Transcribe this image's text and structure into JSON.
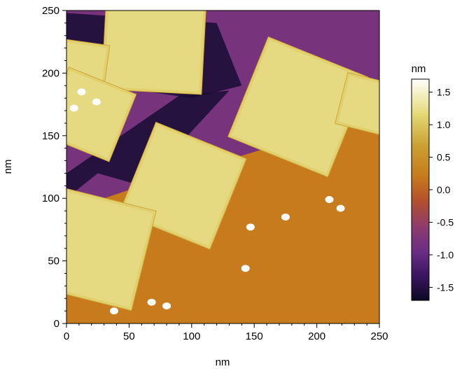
{
  "chart_data": {
    "type": "heatmap",
    "title": "",
    "xlabel": "nm",
    "ylabel": "nm",
    "xlim": [
      0,
      250
    ],
    "ylim": [
      0,
      250
    ],
    "x_ticks": [
      0,
      50,
      100,
      150,
      200,
      250
    ],
    "y_ticks": [
      0,
      50,
      100,
      150,
      200,
      250
    ],
    "colorbar": {
      "label": "nm",
      "range": [
        -1.7,
        1.7
      ],
      "ticks": [
        1.5,
        1.0,
        0.5,
        0.0,
        -0.5,
        -1.0,
        -1.5
      ],
      "tick_labels": [
        "1.5",
        "1.0",
        "0.5",
        "0.0",
        "-0.5",
        "-1.0",
        "-1.5"
      ],
      "colormap": [
        "#0c0a24",
        "#3a1460",
        "#6a2e86",
        "#8e3a6e",
        "#b4502e",
        "#c87a1c",
        "#cca032",
        "#e4d876",
        "#f6f4d2",
        "#ffffff"
      ]
    },
    "features": {
      "substrate_height": 0.2,
      "substrate_upper_left_height": -0.8,
      "trench_height": -1.6,
      "tile_height": 0.9,
      "particle_height": 1.7,
      "tiles": [
        {
          "center": [
            70,
            225
          ],
          "size": 80,
          "angle_deg": 3
        },
        {
          "center": [
            12,
            205
          ],
          "size": 40,
          "angle_deg": 8
        },
        {
          "center": [
            18,
            167
          ],
          "size": 58,
          "angle_deg": 22
        },
        {
          "center": [
            185,
            173
          ],
          "size": 86,
          "angle_deg": 22
        },
        {
          "center": [
            93,
            110
          ],
          "size": 78,
          "angle_deg": 22
        },
        {
          "center": [
            22,
            60
          ],
          "size": 82,
          "angle_deg": 14
        },
        {
          "center": [
            240,
            175
          ],
          "size": 42,
          "angle_deg": 14
        }
      ],
      "particles": [
        {
          "x": 12,
          "y": 185
        },
        {
          "x": 24,
          "y": 177
        },
        {
          "x": 6,
          "y": 172
        },
        {
          "x": 210,
          "y": 99
        },
        {
          "x": 219,
          "y": 92
        },
        {
          "x": 175,
          "y": 85
        },
        {
          "x": 147,
          "y": 77
        },
        {
          "x": 143,
          "y": 44
        },
        {
          "x": 68,
          "y": 17
        },
        {
          "x": 80,
          "y": 14
        },
        {
          "x": 38,
          "y": 10
        }
      ]
    }
  }
}
